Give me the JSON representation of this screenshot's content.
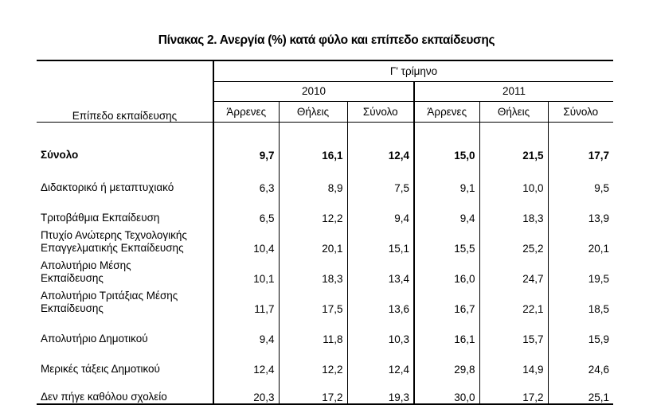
{
  "title": "Πίνακας 2. Ανεργία (%) κατά φύλο και επίπεδο εκπαίδευσης",
  "table": {
    "row_header": "Επίπεδο εκπαίδευσης",
    "period": "Γ' τρίμηνο",
    "years": [
      "2010",
      "2011"
    ],
    "subheaders": [
      "Άρρενες",
      "Θήλεις",
      "Σύνολο",
      "Άρρενες",
      "Θήλεις",
      "Σύνολο"
    ],
    "rows": [
      {
        "label": [
          "Σύνολο"
        ],
        "bold": true,
        "values": [
          "9,7",
          "16,1",
          "12,4",
          "15,0",
          "21,5",
          "17,7"
        ]
      },
      {
        "label": [
          "Διδακτορικό ή μεταπτυχιακό"
        ],
        "values": [
          "6,3",
          "8,9",
          "7,5",
          "9,1",
          "10,0",
          "9,5"
        ]
      },
      {
        "label": [
          "Τριτοβάθμια Εκπαίδευση"
        ],
        "values": [
          "6,5",
          "12,2",
          "9,4",
          "9,4",
          "18,3",
          "13,9"
        ]
      },
      {
        "label": [
          "Πτυχίο Ανώτερης Τεχνολογικής",
          "Επαγγελματικής Εκπαίδευσης"
        ],
        "values": [
          "10,4",
          "20,1",
          "15,1",
          "15,5",
          "25,2",
          "20,1"
        ]
      },
      {
        "label": [
          "Απολυτήριο Μέσης",
          "Εκπαίδευσης"
        ],
        "values": [
          "10,1",
          "18,3",
          "13,4",
          "16,0",
          "24,7",
          "19,5"
        ]
      },
      {
        "label": [
          "Απολυτήριο Τριτάξιας Μέσης",
          "Εκπαίδευσης"
        ],
        "values": [
          "11,7",
          "17,5",
          "13,6",
          "16,7",
          "22,1",
          "18,5"
        ]
      },
      {
        "label": [
          "Απολυτήριο Δημοτικού"
        ],
        "values": [
          "9,4",
          "11,8",
          "10,3",
          "16,1",
          "15,7",
          "15,9"
        ]
      },
      {
        "label": [
          "Μερικές τάξεις Δημοτικού"
        ],
        "values": [
          "12,4",
          "12,2",
          "12,4",
          "29,8",
          "14,9",
          "24,6"
        ]
      },
      {
        "label": [
          "Δεν πήγε καθόλου σχολείο"
        ],
        "values": [
          "20,3",
          "17,2",
          "19,3",
          "30,0",
          "17,2",
          "25,1"
        ]
      }
    ]
  }
}
